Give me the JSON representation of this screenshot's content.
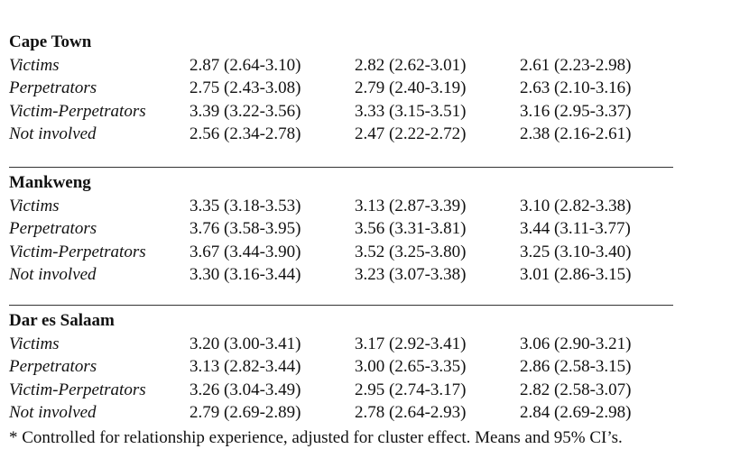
{
  "sections": [
    {
      "title": "Cape Town",
      "rows": [
        {
          "label": "Victims",
          "cells": [
            "2.87 (2.64-3.10)",
            "2.82 (2.62-3.01)",
            "2.61 (2.23-2.98)"
          ]
        },
        {
          "label": "Perpetrators",
          "cells": [
            "2.75 (2.43-3.08)",
            "2.79 (2.40-3.19)",
            "2.63 (2.10-3.16)"
          ]
        },
        {
          "label": "Victim-Perpetrators",
          "cells": [
            "3.39 (3.22-3.56)",
            "3.33 (3.15-3.51)",
            "3.16 (2.95-3.37)"
          ]
        },
        {
          "label": "Not involved",
          "cells": [
            "2.56 (2.34-2.78)",
            "2.47 (2.22-2.72)",
            "2.38 (2.16-2.61)"
          ]
        }
      ]
    },
    {
      "title": "Mankweng",
      "rows": [
        {
          "label": "Victims",
          "cells": [
            "3.35 (3.18-3.53)",
            "3.13 (2.87-3.39)",
            "3.10 (2.82-3.38)"
          ]
        },
        {
          "label": "Perpetrators",
          "cells": [
            "3.76 (3.58-3.95)",
            "3.56 (3.31-3.81)",
            "3.44 (3.11-3.77)"
          ]
        },
        {
          "label": "Victim-Perpetrators",
          "cells": [
            "3.67 (3.44-3.90)",
            "3.52 (3.25-3.80)",
            "3.25 (3.10-3.40)"
          ]
        },
        {
          "label": "Not involved",
          "cells": [
            "3.30 (3.16-3.44)",
            "3.23 (3.07-3.38)",
            "3.01 (2.86-3.15)"
          ]
        }
      ]
    },
    {
      "title": "Dar es Salaam",
      "rows": [
        {
          "label": "Victims",
          "cells": [
            "3.20 (3.00-3.41)",
            "3.17 (2.92-3.41)",
            "3.06 (2.90-3.21)"
          ]
        },
        {
          "label": "Perpetrators",
          "cells": [
            "3.13 (2.82-3.44)",
            "3.00 (2.65-3.35)",
            "2.86 (2.58-3.15)"
          ]
        },
        {
          "label": "Victim-Perpetrators",
          "cells": [
            "3.26 (3.04-3.49)",
            "2.95 (2.74-3.17)",
            "2.82 (2.58-3.07)"
          ]
        },
        {
          "label": "Not involved",
          "cells": [
            "2.79 (2.69-2.89)",
            "2.78 (2.64-2.93)",
            "2.84 (2.69-2.98)"
          ]
        }
      ]
    }
  ],
  "footnote": "* Controlled for relationship experience, adjusted for cluster effect. Means and 95% CI’s."
}
